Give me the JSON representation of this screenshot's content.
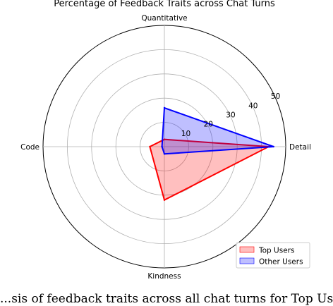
{
  "chart_data": {
    "type": "radar",
    "title": "Percentage of Feedback Traits across Chat Turns",
    "axes": [
      "Detail",
      "Quantitative",
      "Code",
      "Kindness"
    ],
    "rlim": [
      0,
      50
    ],
    "rticks": [
      10,
      20,
      30,
      40,
      50
    ],
    "rtick_labels": [
      "10",
      "20",
      "30",
      "40",
      "50"
    ],
    "grid": true,
    "legend_placement": "lower-right",
    "series": [
      {
        "name": "Top Users",
        "values": [
          43,
          3,
          6,
          22
        ],
        "color": "#ff0000",
        "fill": "rgba(255,0,0,0.25)"
      },
      {
        "name": "Other Users",
        "values": [
          45,
          16,
          1,
          3
        ],
        "color": "#0000ff",
        "fill": "rgba(0,0,255,0.25)"
      }
    ]
  },
  "caption": "...sis of feedback traits across all chat turns for Top Users and..."
}
